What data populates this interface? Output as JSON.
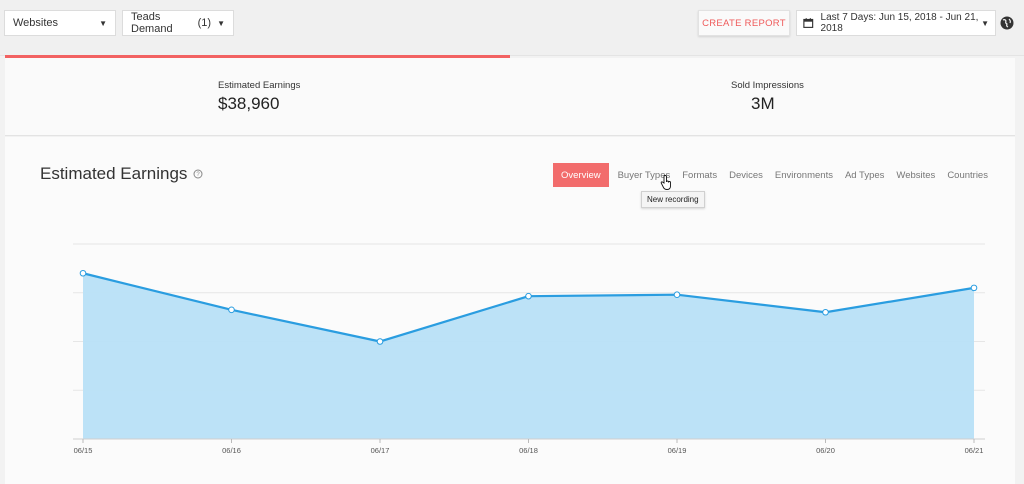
{
  "filters": {
    "websites_label": "Websites",
    "demand_label": "Teads Demand",
    "demand_count": "(1)"
  },
  "toolbar": {
    "create_report_label": "CREATE REPORT",
    "date_range_label": "Last 7 Days: Jun 15, 2018 - Jun 21, 2018"
  },
  "icons": {
    "calendar": "calendar-icon",
    "globe": "globe-icon",
    "help": "help-icon",
    "cursor": "hand-cursor-icon"
  },
  "colors": {
    "accent": "#f26262",
    "line": "#2a9de0",
    "area": "#b8e0f7"
  },
  "progress": {
    "fraction": 0.5
  },
  "summary": {
    "earnings_label": "Estimated Earnings",
    "earnings_value": "$38,960",
    "impressions_label": "Sold Impressions",
    "impressions_value": "3M"
  },
  "section": {
    "title": "Estimated Earnings",
    "tabs": [
      "Overview",
      "Buyer Types",
      "Formats",
      "Devices",
      "Environments",
      "Ad Types",
      "Websites",
      "Countries"
    ],
    "active_tab": "Overview",
    "tooltip": "New recording"
  },
  "chart_data": {
    "type": "area",
    "title": "Estimated Earnings",
    "categories": [
      "06/15",
      "06/16",
      "06/17",
      "06/18",
      "06/19",
      "06/20",
      "06/21"
    ],
    "series": [
      {
        "name": "Estimated Earnings",
        "values": [
          3.4,
          2.65,
          2.0,
          2.93,
          2.96,
          2.6,
          3.1
        ]
      }
    ],
    "ylim": [
      0,
      4
    ],
    "grid": true,
    "xlabel": "",
    "ylabel": ""
  }
}
